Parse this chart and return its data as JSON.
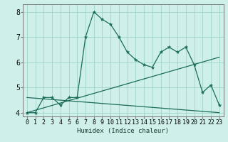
{
  "x": [
    0,
    1,
    2,
    3,
    4,
    5,
    6,
    7,
    8,
    9,
    10,
    11,
    12,
    13,
    14,
    15,
    16,
    17,
    18,
    19,
    20,
    21,
    22,
    23
  ],
  "main_line": [
    4.0,
    4.0,
    4.6,
    4.6,
    4.3,
    4.6,
    4.6,
    7.0,
    8.0,
    7.7,
    7.5,
    7.0,
    6.4,
    6.1,
    5.9,
    5.8,
    6.4,
    6.6,
    6.4,
    6.6,
    5.9,
    4.8,
    5.1,
    4.3
  ],
  "upper_line_x": [
    0,
    23
  ],
  "upper_line_y": [
    4.0,
    6.2
  ],
  "lower_line_x": [
    0,
    23
  ],
  "lower_line_y": [
    4.6,
    4.0
  ],
  "bg_color": "#cff0ea",
  "line_color": "#1a6b5a",
  "grid_color": "#a0d4c8",
  "xlabel": "Humidex (Indice chaleur)",
  "xlim": [
    -0.5,
    23.5
  ],
  "ylim": [
    3.85,
    8.3
  ],
  "yticks": [
    4,
    5,
    6,
    7,
    8
  ],
  "xticks": [
    0,
    1,
    2,
    3,
    4,
    5,
    6,
    7,
    8,
    9,
    10,
    11,
    12,
    13,
    14,
    15,
    16,
    17,
    18,
    19,
    20,
    21,
    22,
    23
  ],
  "xlabel_fontsize": 6.5,
  "tick_fontsize": 6,
  "ytick_fontsize": 7
}
